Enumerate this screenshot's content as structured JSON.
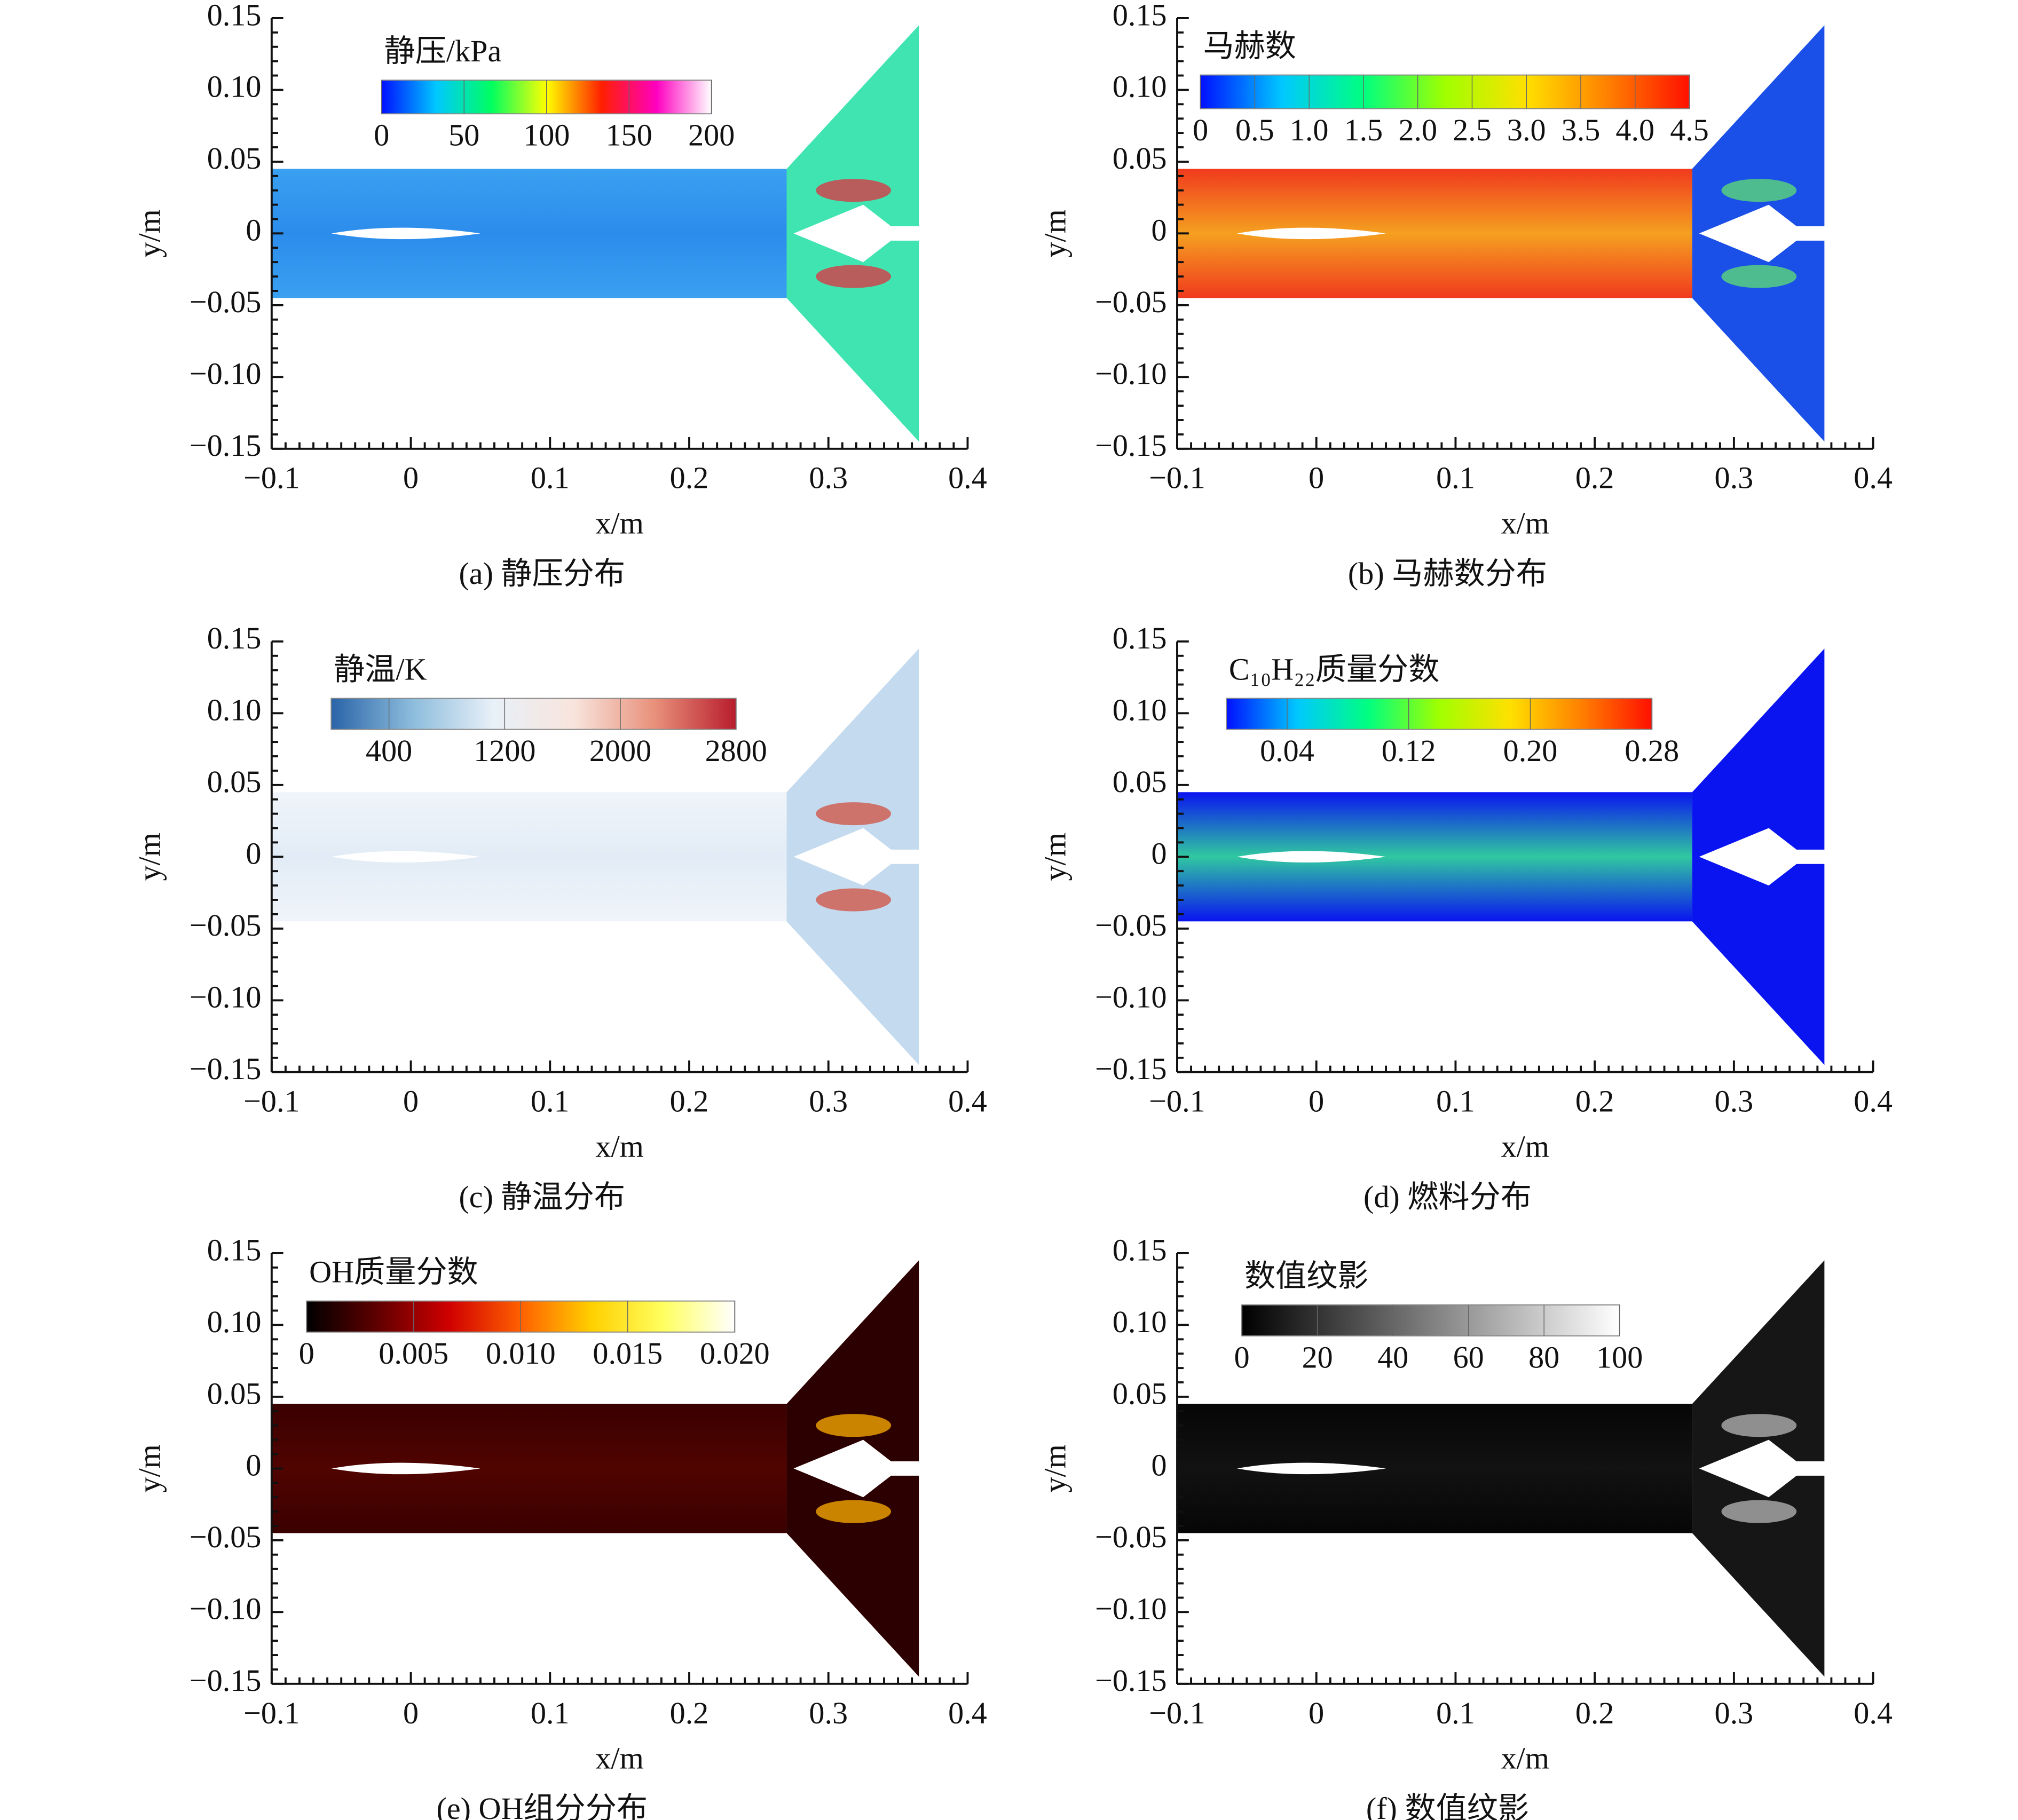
{
  "chart_data": [
    {
      "type": "contour",
      "caption": "(a) 静压分布",
      "xlabel": "x/m",
      "ylabel": "y/m",
      "xlim": [
        -0.1,
        0.4
      ],
      "ylim": [
        -0.15,
        0.15
      ],
      "xticks": [
        {
          "value": -0.1,
          "label": "−0.1"
        },
        0,
        0.1,
        0.2,
        0.3,
        0.4
      ],
      "yticks": [
        {
          "value": -0.15,
          "label": "−0.15"
        },
        {
          "value": -0.1,
          "label": "−0.10"
        },
        {
          "value": -0.05,
          "label": "−0.05"
        },
        0,
        0.05,
        {
          "value": 0.1,
          "label": "0.10"
        },
        0.15
      ],
      "xminor": 10,
      "yminor": 5,
      "colorbar": {
        "title": "静压/kPa",
        "lim": [
          0,
          200
        ],
        "ticks": [
          0,
          50,
          100,
          150,
          200
        ],
        "colors": [
          "#0010ff",
          "#00c8ff",
          "#00ff60",
          "#ffff00",
          "#ff2000",
          "#ff00c0",
          "#ffffff"
        ]
      },
      "field": {
        "channel": [
          "#3aa0f0",
          "#2c8cec"
        ],
        "nozzle": "#40e4b0",
        "jet": "#e03040"
      }
    },
    {
      "type": "contour",
      "caption": "(b) 马赫数分布",
      "xlabel": "x/m",
      "ylabel": "y/m",
      "xlim": [
        -0.1,
        0.4
      ],
      "ylim": [
        -0.15,
        0.15
      ],
      "xticks": [
        {
          "value": -0.1,
          "label": "−0.1"
        },
        0,
        0.1,
        0.2,
        0.3,
        0.4
      ],
      "yticks": [
        {
          "value": -0.15,
          "label": "−0.15"
        },
        {
          "value": -0.1,
          "label": "−0.10"
        },
        {
          "value": -0.05,
          "label": "−0.05"
        },
        0,
        0.05,
        {
          "value": 0.1,
          "label": "0.10"
        },
        0.15
      ],
      "xminor": 10,
      "yminor": 5,
      "colorbar": {
        "title": "马赫数",
        "lim": [
          0,
          4.5
        ],
        "ticks": [
          0,
          0.5,
          {
            "value": 1,
            "label": "1.0"
          },
          1.5,
          {
            "value": 2,
            "label": "2.0"
          },
          2.5,
          {
            "value": 3,
            "label": "3.0"
          },
          3.5,
          {
            "value": 4,
            "label": "4.0"
          },
          4.5
        ],
        "colors": [
          "#0010ff",
          "#00c8ff",
          "#00ff80",
          "#a0ff00",
          "#ffe000",
          "#ff8000",
          "#ff1000"
        ]
      },
      "field": {
        "channel": [
          "#f03a1e",
          "#f5a020"
        ],
        "nozzle": "#1a50e8",
        "jet": "#60e070"
      }
    },
    {
      "type": "contour",
      "caption": "(c) 静温分布",
      "xlabel": "x/m",
      "ylabel": "y/m",
      "xlim": [
        -0.1,
        0.4
      ],
      "ylim": [
        -0.15,
        0.15
      ],
      "xticks": [
        {
          "value": -0.1,
          "label": "−0.1"
        },
        0,
        0.1,
        0.2,
        0.3,
        0.4
      ],
      "yticks": [
        {
          "value": -0.15,
          "label": "−0.15"
        },
        {
          "value": -0.1,
          "label": "−0.10"
        },
        {
          "value": -0.05,
          "label": "−0.05"
        },
        0,
        0.05,
        {
          "value": 0.1,
          "label": "0.10"
        },
        0.15
      ],
      "xminor": 10,
      "yminor": 5,
      "colorbar": {
        "title": "静温/K",
        "lim": [
          0,
          2800
        ],
        "ticks": [
          400,
          1200,
          2000,
          2800
        ],
        "colors": [
          "#2a64a8",
          "#8cbcdc",
          "#e8f0f8",
          "#f8e4dc",
          "#e8907a",
          "#b81c2c"
        ]
      },
      "field": {
        "channel": [
          "#f0f4fa",
          "#e2ecf6"
        ],
        "nozzle": "#c4daee",
        "jet": "#d05040"
      }
    },
    {
      "type": "contour",
      "caption": "(d) 燃料分布",
      "xlabel": "x/m",
      "ylabel": "y/m",
      "xlim": [
        -0.1,
        0.4
      ],
      "ylim": [
        -0.15,
        0.15
      ],
      "xticks": [
        {
          "value": -0.1,
          "label": "−0.1"
        },
        0,
        0.1,
        0.2,
        0.3,
        0.4
      ],
      "yticks": [
        {
          "value": -0.15,
          "label": "−0.15"
        },
        {
          "value": -0.1,
          "label": "−0.10"
        },
        {
          "value": -0.05,
          "label": "−0.05"
        },
        0,
        0.05,
        {
          "value": 0.1,
          "label": "0.10"
        },
        0.15
      ],
      "xminor": 10,
      "yminor": 5,
      "colorbar": {
        "title": "C₁₀H₂₂质量分数",
        "lim": [
          0,
          0.28
        ],
        "ticks": [
          0.04,
          0.12,
          {
            "value": 0.2,
            "label": "0.20"
          },
          0.28
        ],
        "colors": [
          "#0010ff",
          "#00c8ff",
          "#00ff80",
          "#a0ff00",
          "#ffe000",
          "#ff8000",
          "#ff1000"
        ]
      },
      "field": {
        "channel": [
          "#0a14f0",
          "#30c8a0"
        ],
        "nozzle": "#0a14f0"
      }
    },
    {
      "type": "contour",
      "caption": "(e) OH组分分布",
      "xlabel": "x/m",
      "ylabel": "y/m",
      "xlim": [
        -0.1,
        0.4
      ],
      "ylim": [
        -0.15,
        0.15
      ],
      "xticks": [
        {
          "value": -0.1,
          "label": "−0.1"
        },
        0,
        0.1,
        0.2,
        0.3,
        0.4
      ],
      "yticks": [
        {
          "value": -0.15,
          "label": "−0.15"
        },
        {
          "value": -0.1,
          "label": "−0.10"
        },
        {
          "value": -0.05,
          "label": "−0.05"
        },
        0,
        0.05,
        {
          "value": 0.1,
          "label": "0.10"
        },
        0.15
      ],
      "xminor": 10,
      "yminor": 5,
      "colorbar": {
        "title": "OH质量分数",
        "lim": [
          0,
          0.02
        ],
        "ticks": [
          0,
          0.005,
          {
            "value": 0.01,
            "label": "0.010"
          },
          0.015,
          {
            "value": 0.02,
            "label": "0.020"
          }
        ],
        "colors": [
          "#000000",
          "#600000",
          "#d00000",
          "#ff6000",
          "#ffd000",
          "#ffff60",
          "#ffffff"
        ]
      },
      "field": {
        "channel": [
          "#3a0000",
          "#500400"
        ],
        "nozzle": "#2c0000",
        "jet": "#ffb000"
      }
    },
    {
      "type": "contour",
      "caption": "(f) 数值纹影",
      "xlabel": "x/m",
      "ylabel": "y/m",
      "xlim": [
        -0.1,
        0.4
      ],
      "ylim": [
        -0.15,
        0.15
      ],
      "xticks": [
        {
          "value": -0.1,
          "label": "−0.1"
        },
        0,
        0.1,
        0.2,
        0.3,
        0.4
      ],
      "yticks": [
        {
          "value": -0.15,
          "label": "−0.15"
        },
        {
          "value": -0.1,
          "label": "−0.10"
        },
        {
          "value": -0.05,
          "label": "−0.05"
        },
        0,
        0.05,
        {
          "value": 0.1,
          "label": "0.10"
        },
        0.15
      ],
      "xminor": 10,
      "yminor": 5,
      "colorbar": {
        "title": "数值纹影",
        "lim": [
          0,
          100
        ],
        "ticks": [
          0,
          20,
          40,
          60,
          80,
          100
        ],
        "colors": [
          "#000000",
          "#ffffff"
        ]
      },
      "field": {
        "channel": [
          "#060606",
          "#121212"
        ],
        "nozzle": "#161616",
        "jet": "#b8b8b8"
      }
    }
  ]
}
